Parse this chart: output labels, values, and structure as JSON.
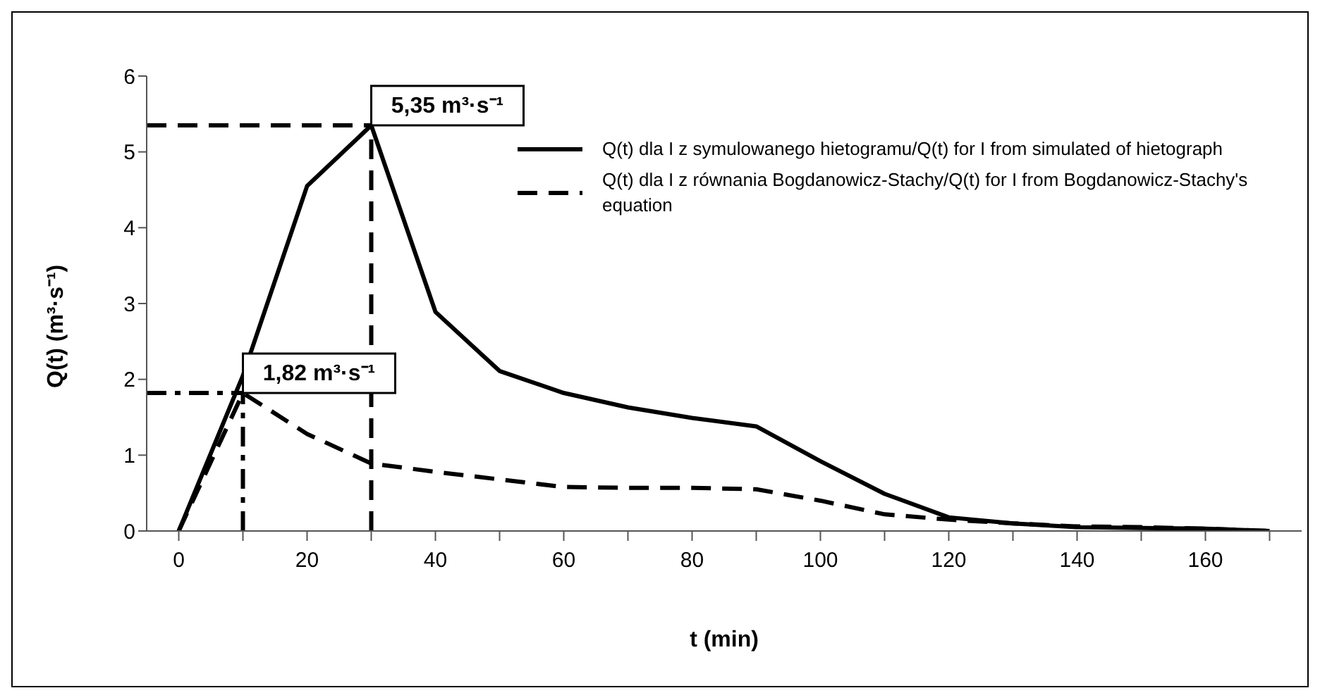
{
  "chart_data": {
    "type": "line",
    "xlabel": "t (min)",
    "ylabel": "Q(t) (m³·s⁻¹)",
    "x": [
      0,
      10,
      20,
      30,
      40,
      50,
      60,
      70,
      80,
      90,
      100,
      110,
      120,
      130,
      140,
      150,
      160,
      170
    ],
    "series": [
      {
        "name": "Q(t) dla I z symulowanego hietogramu/Q(t) for I from simulated of hietograph",
        "color": "#000000",
        "line_style": "solid",
        "values": [
          0,
          2.05,
          4.55,
          5.35,
          2.89,
          2.11,
          1.82,
          1.63,
          1.49,
          1.38,
          0.92,
          0.49,
          0.18,
          0.1,
          0.05,
          0.04,
          0.03,
          0
        ]
      },
      {
        "name": "Q(t) dla I z równania Bogdanowicz-Stachy/Q(t) for I from Bogdanowicz-Stachy's equation",
        "color": "#000000",
        "line_style": "dashed",
        "values": [
          0,
          1.82,
          1.28,
          0.89,
          0.78,
          0.68,
          0.58,
          0.57,
          0.57,
          0.55,
          0.4,
          0.22,
          0.15,
          0.1,
          0.06,
          0.05,
          0.03,
          0
        ]
      }
    ],
    "xlim": [
      -5,
      175
    ],
    "xticks": [
      0,
      {
        "value": 10,
        "label": null
      },
      20,
      {
        "value": 30,
        "label": null
      },
      40,
      {
        "value": 50,
        "label": null
      },
      60,
      {
        "value": 70,
        "label": null
      },
      80,
      {
        "value": 90,
        "label": null
      },
      100,
      {
        "value": 110,
        "label": null
      },
      120,
      {
        "value": 130,
        "label": null
      },
      140,
      {
        "value": 150,
        "label": null
      },
      160,
      {
        "value": 170,
        "label": null
      }
    ],
    "ylim": [
      0,
      6
    ],
    "yticks": [
      0,
      1,
      2,
      3,
      4,
      5,
      6
    ],
    "grid": false,
    "legend": "top right",
    "marker": "none",
    "ref_lines": [
      {
        "axis": "y",
        "value": 5.35,
        "line_style": "dashed",
        "color": "#000000"
      },
      {
        "axis": "x",
        "value": 30,
        "line_style": "dashed",
        "color": "#000000"
      },
      {
        "axis": "y",
        "value": 1.82,
        "line_style": "dotted",
        "color": "#000000"
      },
      {
        "axis": "x",
        "value": 10,
        "line_style": "dotted",
        "color": "#000000"
      }
    ],
    "annotations": [
      {
        "text": "5,35 m³·s⁻¹",
        "x": 30,
        "y": 5.35
      },
      {
        "text": "1,82 m³·s⁻¹",
        "x": 10,
        "y": 1.82
      }
    ]
  }
}
